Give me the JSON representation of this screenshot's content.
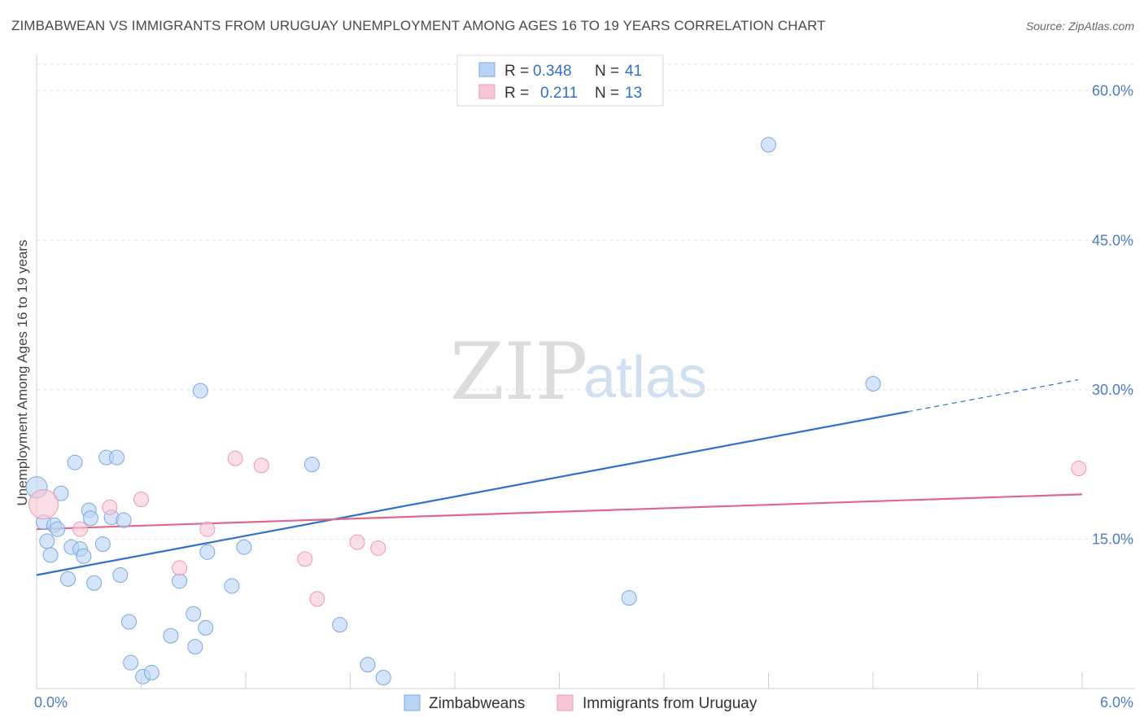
{
  "header": {
    "title": "ZIMBABWEAN VS IMMIGRANTS FROM URUGUAY UNEMPLOYMENT AMONG AGES 16 TO 19 YEARS CORRELATION CHART",
    "source": "Source: ZipAtlas.com"
  },
  "legend": {
    "r_label": "R =",
    "n_label": "N =",
    "series": [
      {
        "r": "0.348",
        "n": "41"
      },
      {
        "r": "0.211",
        "n": "13"
      }
    ]
  },
  "bottom_legend": [
    "Zimbabweans",
    "Immigrants from Uruguay"
  ],
  "watermark": {
    "zip": "ZIP",
    "atlas": "atlas"
  },
  "colors": {
    "blue_fill": "#b8d3f5",
    "blue_stroke": "#7aa8e0",
    "blue_line": "#2f6fce",
    "pink_fill": "#f8c6d5",
    "pink_stroke": "#ec9ab3",
    "pink_line": "#e0668e",
    "tick_text": "#4a7cc9"
  },
  "chart_data": {
    "type": "scatter",
    "title": "ZIMBABWEAN VS IMMIGRANTS FROM URUGUAY UNEMPLOYMENT AMONG AGES 16 TO 19 YEARS CORRELATION CHART",
    "xlabel": "",
    "ylabel": "Unemployment Among Ages 16 to 19 years",
    "xlim": [
      0,
      6
    ],
    "ylim": [
      0,
      63
    ],
    "x_tick_labels": [
      "0.0%",
      "6.0%"
    ],
    "y_ticks": [
      15,
      30,
      45,
      60
    ],
    "y_tick_labels": [
      "15.0%",
      "30.0%",
      "45.0%",
      "60.0%"
    ],
    "series": [
      {
        "name": "Zimbabweans",
        "color": "blue",
        "points": [
          [
            0.0,
            20.2
          ],
          [
            0.04,
            16.7
          ],
          [
            0.06,
            14.8
          ],
          [
            0.08,
            13.4
          ],
          [
            0.1,
            16.4
          ],
          [
            0.12,
            16.0
          ],
          [
            0.14,
            19.6
          ],
          [
            0.18,
            11.0
          ],
          [
            0.2,
            14.2
          ],
          [
            0.22,
            22.7
          ],
          [
            0.25,
            14.0
          ],
          [
            0.27,
            13.3
          ],
          [
            0.3,
            17.9
          ],
          [
            0.31,
            17.1
          ],
          [
            0.33,
            10.6
          ],
          [
            0.38,
            14.5
          ],
          [
            0.4,
            23.2
          ],
          [
            0.43,
            17.2
          ],
          [
            0.46,
            23.2
          ],
          [
            0.48,
            11.4
          ],
          [
            0.5,
            16.9
          ],
          [
            0.53,
            6.7
          ],
          [
            0.54,
            2.6
          ],
          [
            0.61,
            1.2
          ],
          [
            0.66,
            1.6
          ],
          [
            0.77,
            5.3
          ],
          [
            0.82,
            10.8
          ],
          [
            0.9,
            7.5
          ],
          [
            0.91,
            4.2
          ],
          [
            0.94,
            29.9
          ],
          [
            0.97,
            6.1
          ],
          [
            0.98,
            13.7
          ],
          [
            1.12,
            10.3
          ],
          [
            1.19,
            14.2
          ],
          [
            1.58,
            22.5
          ],
          [
            1.74,
            6.4
          ],
          [
            1.9,
            2.4
          ],
          [
            1.99,
            1.1
          ],
          [
            3.4,
            9.1
          ],
          [
            4.2,
            54.6
          ],
          [
            4.8,
            30.6
          ]
        ],
        "trend": {
          "x0": 0.0,
          "y0": 11.4,
          "x1": 5.0,
          "y1": 27.8,
          "dashed_to_x": 6.0,
          "dashed_to_y": 31.0
        }
      },
      {
        "name": "Immigrants from Uruguay",
        "color": "pink",
        "points": [
          [
            0.04,
            18.5
          ],
          [
            0.25,
            16.0
          ],
          [
            0.42,
            18.2
          ],
          [
            0.6,
            19.0
          ],
          [
            0.82,
            12.1
          ],
          [
            0.98,
            16.0
          ],
          [
            1.14,
            23.1
          ],
          [
            1.29,
            22.4
          ],
          [
            1.54,
            13.0
          ],
          [
            1.61,
            9.0
          ],
          [
            1.84,
            14.7
          ],
          [
            1.96,
            14.1
          ],
          [
            5.98,
            22.1
          ]
        ],
        "trend": {
          "x0": 0.0,
          "y0": 16.0,
          "x1": 6.0,
          "y1": 19.5
        }
      }
    ]
  }
}
